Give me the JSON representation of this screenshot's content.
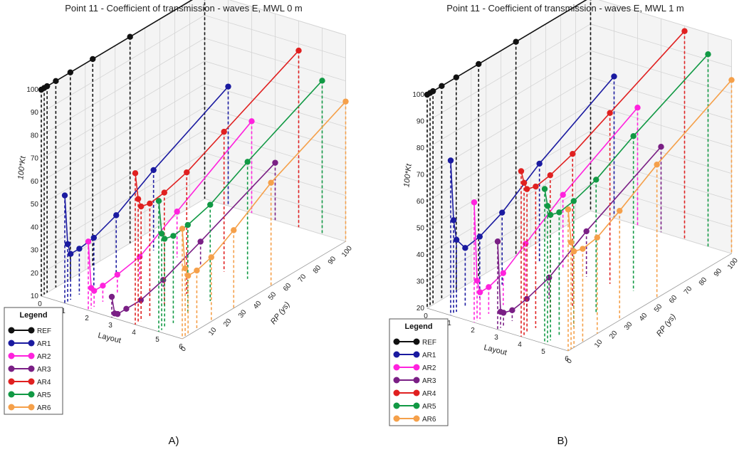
{
  "chart_data": [
    {
      "type": "line",
      "subtype": "3d-line-with-drop-lines",
      "title": "Point 11 - Coefficient of transmission - waves E, MWL 0 m",
      "panel_label": "A)",
      "xlabel": "Layout",
      "ylabel": "RP (ys)",
      "zlabel": "100*Kt",
      "layout_ticks": [
        "0",
        "1",
        "2",
        "3",
        "4",
        "5",
        "6"
      ],
      "rp_ticks": [
        "0",
        "10",
        "20",
        "30",
        "40",
        "50",
        "60",
        "70",
        "80",
        "90",
        "100"
      ],
      "z_ticks": [
        "10",
        "20",
        "30",
        "40",
        "50",
        "60",
        "70",
        "80",
        "90",
        "100"
      ],
      "zlim": [
        10,
        100
      ],
      "rp_values": [
        0,
        1,
        2,
        5,
        10,
        25,
        50,
        100
      ],
      "series": [
        {
          "name": "REF",
          "layout": 0,
          "color": "#111111",
          "values": [
            100,
            100,
            100,
            100,
            100,
            100,
            100,
            100
          ]
        },
        {
          "name": "AR1",
          "layout": 1,
          "color": "#1a1aa0",
          "values": [
            57,
            35,
            30,
            30,
            31,
            35,
            45,
            62
          ]
        },
        {
          "name": "AR2",
          "layout": 2,
          "color": "#ff22dd",
          "values": [
            40,
            19,
            17,
            17,
            18,
            20,
            30,
            50
          ]
        },
        {
          "name": "AR3",
          "layout": 3,
          "color": "#7a1f85",
          "values": [
            19,
            11,
            10,
            10,
            10,
            13,
            20,
            35
          ]
        },
        {
          "name": "AR4",
          "layout": 4,
          "color": "#e02020",
          "values": [
            76,
            64,
            60,
            59,
            60,
            63,
            71,
            87
          ]
        },
        {
          "name": "AR5",
          "layout": 5,
          "color": "#119944",
          "values": [
            67,
            52,
            49,
            48,
            49,
            52,
            61,
            77
          ]
        },
        {
          "name": "AR6",
          "layout": 6,
          "color": "#f5a04a",
          "values": [
            58,
            40,
            36,
            36,
            38,
            44,
            55,
            71
          ]
        }
      ]
    },
    {
      "type": "line",
      "subtype": "3d-line-with-drop-lines",
      "title": "Point 11 - Coefficient of transmission - waves E, MWL 1 m",
      "panel_label": "B)",
      "xlabel": "Layout",
      "ylabel": "RP (ys)",
      "zlabel": "100*Kt",
      "layout_ticks": [
        "0",
        "1",
        "2",
        "3",
        "4",
        "5",
        "6"
      ],
      "rp_ticks": [
        "0",
        "10",
        "20",
        "30",
        "40",
        "50",
        "60",
        "70",
        "80",
        "90",
        "100"
      ],
      "z_ticks": [
        "20",
        "30",
        "40",
        "50",
        "60",
        "70",
        "80",
        "90",
        "100"
      ],
      "zlim": [
        20,
        100
      ],
      "rp_values": [
        0,
        1,
        2,
        5,
        10,
        25,
        50,
        100
      ],
      "series": [
        {
          "name": "REF",
          "layout": 0,
          "color": "#111111",
          "values": [
            100,
            100,
            100,
            100,
            100,
            100,
            100,
            100
          ]
        },
        {
          "name": "AR1",
          "layout": 1,
          "color": "#1a1aa0",
          "values": [
            78,
            55,
            47,
            42,
            43,
            47,
            57,
            73
          ]
        },
        {
          "name": "AR2",
          "layout": 2,
          "color": "#ff22dd",
          "values": [
            65,
            35,
            30,
            30,
            32,
            38,
            48,
            64
          ]
        },
        {
          "name": "AR3",
          "layout": 3,
          "color": "#7a1f85",
          "values": [
            53,
            26,
            25,
            24,
            25,
            28,
            37,
            52
          ]
        },
        {
          "name": "AR4",
          "layout": 4,
          "color": "#e02020",
          "values": [
            82,
            77,
            74,
            73,
            74,
            77,
            84,
            98
          ]
        },
        {
          "name": "AR5",
          "layout": 5,
          "color": "#119944",
          "values": [
            78,
            71,
            67,
            66,
            67,
            70,
            78,
            92
          ]
        },
        {
          "name": "AR6",
          "layout": 6,
          "color": "#f5a04a",
          "values": [
            73,
            60,
            56,
            55,
            56,
            61,
            70,
            85
          ]
        }
      ]
    }
  ],
  "legend": {
    "title": "Legend",
    "items": [
      {
        "name": "REF",
        "color": "#111111"
      },
      {
        "name": "AR1",
        "color": "#1a1aa0"
      },
      {
        "name": "AR2",
        "color": "#ff22dd"
      },
      {
        "name": "AR3",
        "color": "#7a1f85"
      },
      {
        "name": "AR4",
        "color": "#e02020"
      },
      {
        "name": "AR5",
        "color": "#119944"
      },
      {
        "name": "AR6",
        "color": "#f5a04a"
      }
    ]
  }
}
